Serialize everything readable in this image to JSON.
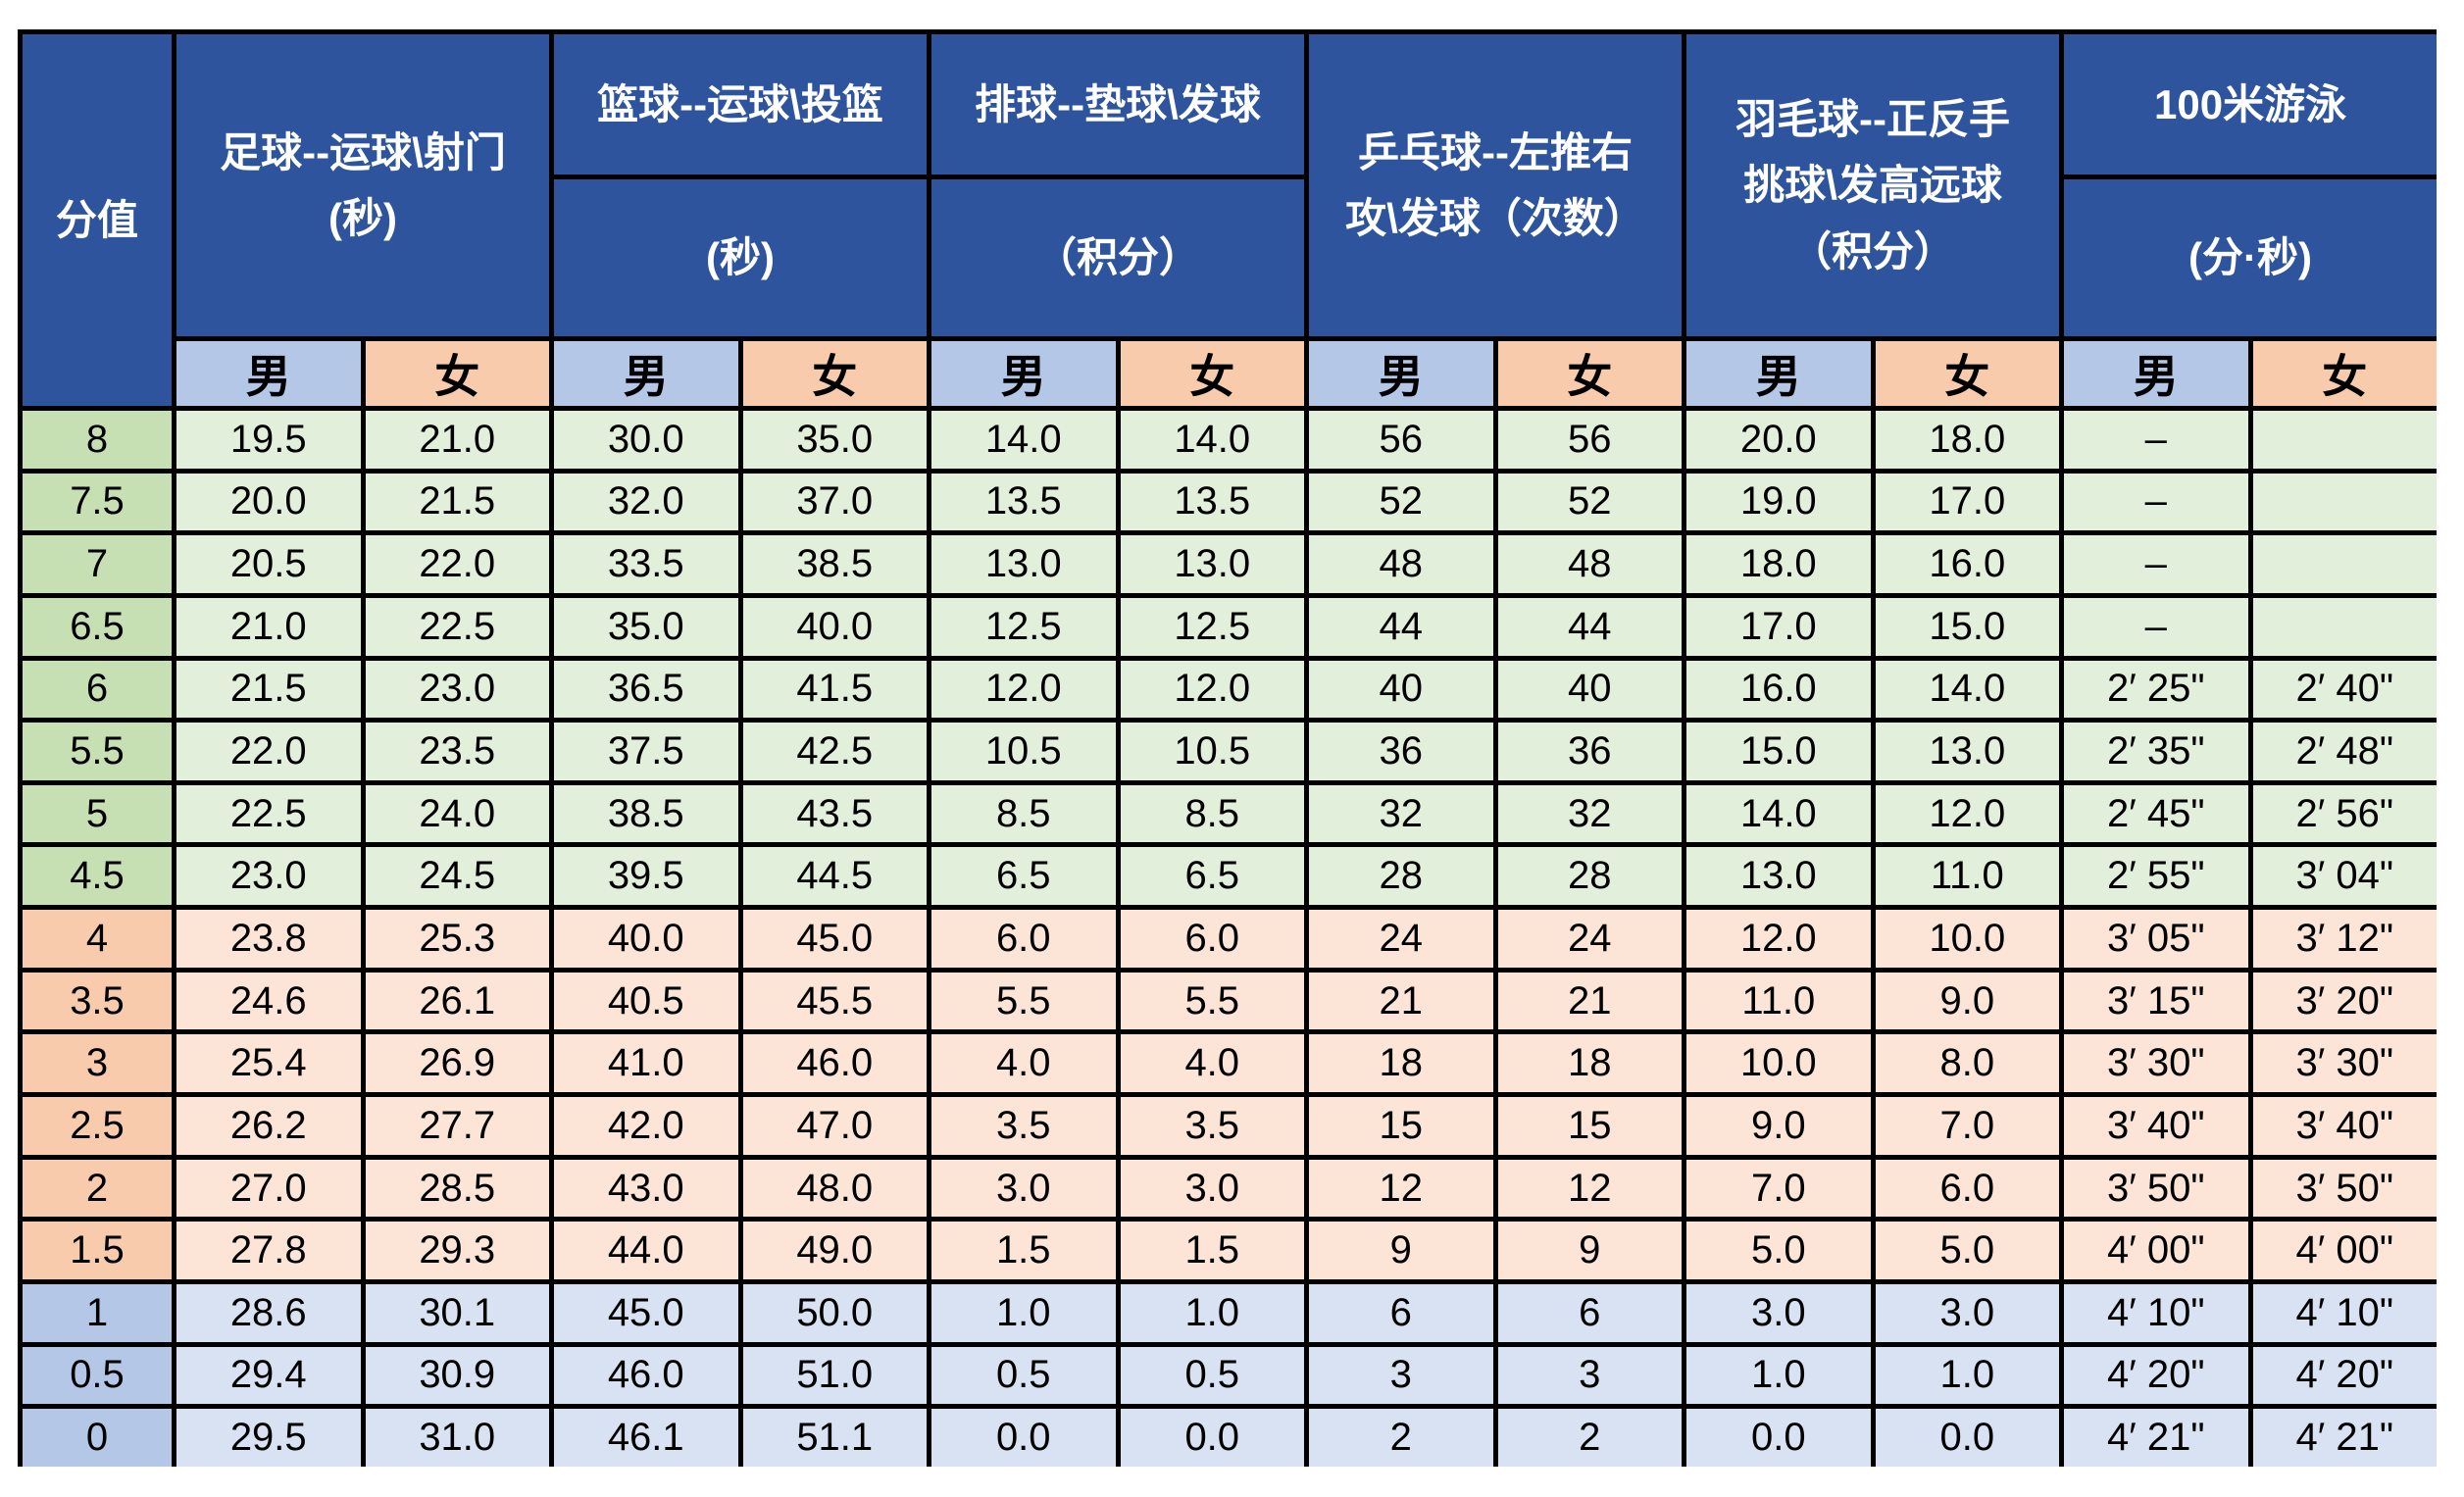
{
  "chart_data": {
    "type": "table",
    "score_header": "分值",
    "male_label": "男",
    "female_label": "女",
    "groups": [
      {
        "id": "soccer",
        "lines": [
          "足球--运球\\射门",
          "(秒)"
        ]
      },
      {
        "id": "basketball",
        "name": "篮球--运球\\投篮",
        "unit": "(秒)"
      },
      {
        "id": "volleyball",
        "name": "排球--垫球\\发球",
        "unit": "（积分）"
      },
      {
        "id": "table-tennis",
        "lines": [
          "乒乓球--左推右",
          "攻\\发球（次数）"
        ]
      },
      {
        "id": "badminton",
        "lines": [
          "羽毛球--正反手",
          "挑球\\发高远球",
          "（积分）"
        ]
      },
      {
        "id": "swimming",
        "name": "100米游泳",
        "unit": "(分·秒)"
      }
    ],
    "rows": [
      {
        "score": "8",
        "band": "green",
        "cells": [
          "19.5",
          "21.0",
          "30.0",
          "35.0",
          "14.0",
          "14.0",
          "56",
          "56",
          "20.0",
          "18.0",
          "–",
          ""
        ]
      },
      {
        "score": "7.5",
        "band": "green",
        "cells": [
          "20.0",
          "21.5",
          "32.0",
          "37.0",
          "13.5",
          "13.5",
          "52",
          "52",
          "19.0",
          "17.0",
          "–",
          ""
        ]
      },
      {
        "score": "7",
        "band": "green",
        "cells": [
          "20.5",
          "22.0",
          "33.5",
          "38.5",
          "13.0",
          "13.0",
          "48",
          "48",
          "18.0",
          "16.0",
          "–",
          ""
        ]
      },
      {
        "score": "6.5",
        "band": "green",
        "cells": [
          "21.0",
          "22.5",
          "35.0",
          "40.0",
          "12.5",
          "12.5",
          "44",
          "44",
          "17.0",
          "15.0",
          "–",
          ""
        ]
      },
      {
        "score": "6",
        "band": "green",
        "cells": [
          "21.5",
          "23.0",
          "36.5",
          "41.5",
          "12.0",
          "12.0",
          "40",
          "40",
          "16.0",
          "14.0",
          "2′ 25\"",
          "2′ 40\""
        ]
      },
      {
        "score": "5.5",
        "band": "green",
        "cells": [
          "22.0",
          "23.5",
          "37.5",
          "42.5",
          "10.5",
          "10.5",
          "36",
          "36",
          "15.0",
          "13.0",
          "2′ 35\"",
          "2′ 48\""
        ]
      },
      {
        "score": "5",
        "band": "green",
        "cells": [
          "22.5",
          "24.0",
          "38.5",
          "43.5",
          "8.5",
          "8.5",
          "32",
          "32",
          "14.0",
          "12.0",
          "2′ 45\"",
          "2′ 56\""
        ]
      },
      {
        "score": "4.5",
        "band": "green",
        "cells": [
          "23.0",
          "24.5",
          "39.5",
          "44.5",
          "6.5",
          "6.5",
          "28",
          "28",
          "13.0",
          "11.0",
          "2′ 55\"",
          "3′ 04\""
        ]
      },
      {
        "score": "4",
        "band": "orange",
        "cells": [
          "23.8",
          "25.3",
          "40.0",
          "45.0",
          "6.0",
          "6.0",
          "24",
          "24",
          "12.0",
          "10.0",
          "3′ 05\"",
          "3′ 12\""
        ]
      },
      {
        "score": "3.5",
        "band": "orange",
        "cells": [
          "24.6",
          "26.1",
          "40.5",
          "45.5",
          "5.5",
          "5.5",
          "21",
          "21",
          "11.0",
          "9.0",
          "3′ 15\"",
          "3′ 20\""
        ]
      },
      {
        "score": "3",
        "band": "orange",
        "cells": [
          "25.4",
          "26.9",
          "41.0",
          "46.0",
          "4.0",
          "4.0",
          "18",
          "18",
          "10.0",
          "8.0",
          "3′ 30\"",
          "3′ 30\""
        ]
      },
      {
        "score": "2.5",
        "band": "orange",
        "cells": [
          "26.2",
          "27.7",
          "42.0",
          "47.0",
          "3.5",
          "3.5",
          "15",
          "15",
          "9.0",
          "7.0",
          "3′ 40\"",
          "3′ 40\""
        ]
      },
      {
        "score": "2",
        "band": "orange",
        "cells": [
          "27.0",
          "28.5",
          "43.0",
          "48.0",
          "3.0",
          "3.0",
          "12",
          "12",
          "7.0",
          "6.0",
          "3′ 50\"",
          "3′ 50\""
        ]
      },
      {
        "score": "1.5",
        "band": "orange",
        "cells": [
          "27.8",
          "29.3",
          "44.0",
          "49.0",
          "1.5",
          "1.5",
          "9",
          "9",
          "5.0",
          "5.0",
          "4′ 00\"",
          "4′ 00\""
        ]
      },
      {
        "score": "1",
        "band": "blue",
        "cells": [
          "28.6",
          "30.1",
          "45.0",
          "50.0",
          "1.0",
          "1.0",
          "6",
          "6",
          "3.0",
          "3.0",
          "4′ 10\"",
          "4′ 10\""
        ]
      },
      {
        "score": "0.5",
        "band": "blue",
        "cells": [
          "29.4",
          "30.9",
          "46.0",
          "51.0",
          "0.5",
          "0.5",
          "3",
          "3",
          "1.0",
          "1.0",
          "4′ 20\"",
          "4′ 20\""
        ]
      },
      {
        "score": "0",
        "band": "blue",
        "cells": [
          "29.5",
          "31.0",
          "46.1",
          "51.1",
          "0.0",
          "0.0",
          "2",
          "2",
          "0.0",
          "0.0",
          "4′ 21\"",
          "4′ 21\""
        ]
      }
    ]
  },
  "colors": {
    "header_bg": "#2E549E",
    "header_text": "#FFFFFF",
    "male_header_bg": "#B4C7E7",
    "female_header_bg": "#F8CBAD",
    "green_score_bg": "#C6E0B4",
    "green_data_bg": "#E2EFDA",
    "orange_score_bg": "#F8CBAD",
    "orange_data_bg": "#FCE4D6",
    "blue_score_bg": "#B4C7E7",
    "blue_data_bg": "#D9E2F3",
    "border": "#000000",
    "text": "#000000"
  }
}
